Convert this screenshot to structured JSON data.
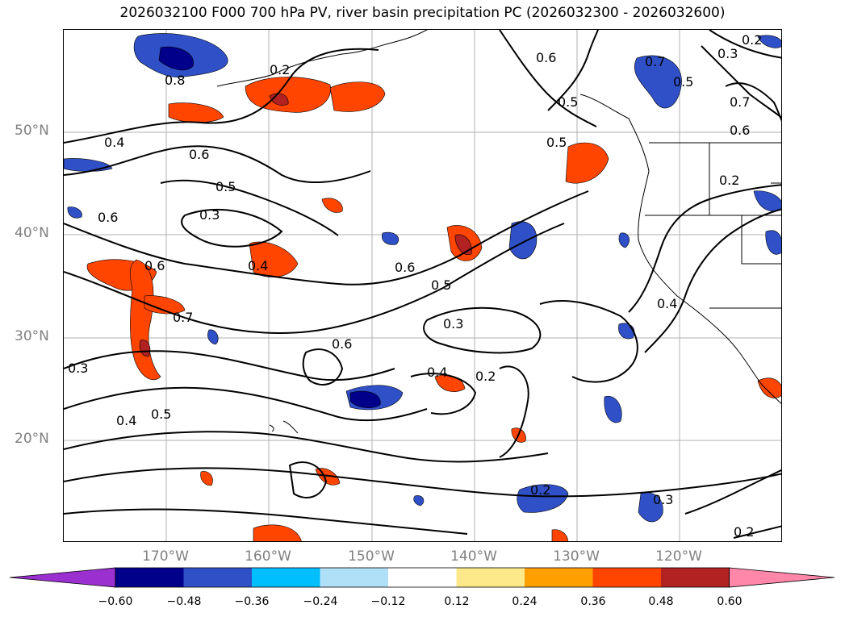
{
  "title": "2026032100 F000 700 hPa PV, river basin precipitation PC (2026032300 - 2026032600)",
  "latitude_labels": [
    "50°N",
    "40°N",
    "30°N",
    "20°N"
  ],
  "longitude_labels": [
    "170°W",
    "160°W",
    "150°W",
    "140°W",
    "130°W",
    "120°W"
  ],
  "colorbar": {
    "ticks": [
      "−0.60",
      "−0.48",
      "−0.36",
      "−0.24",
      "−0.12",
      "0.12",
      "0.24",
      "0.36",
      "0.48",
      "0.60"
    ],
    "colors": [
      "#9a30d0",
      "#00008b",
      "#3050c8",
      "#00bfff",
      "#b0e0f8",
      "#ffffff",
      "#fde88a",
      "#ffa000",
      "#ff4500",
      "#b22222",
      "#ff88aa"
    ]
  },
  "contour_labels": [
    "0.2",
    "0.3",
    "0.4",
    "0.5",
    "0.6",
    "0.7",
    "0.8"
  ]
}
